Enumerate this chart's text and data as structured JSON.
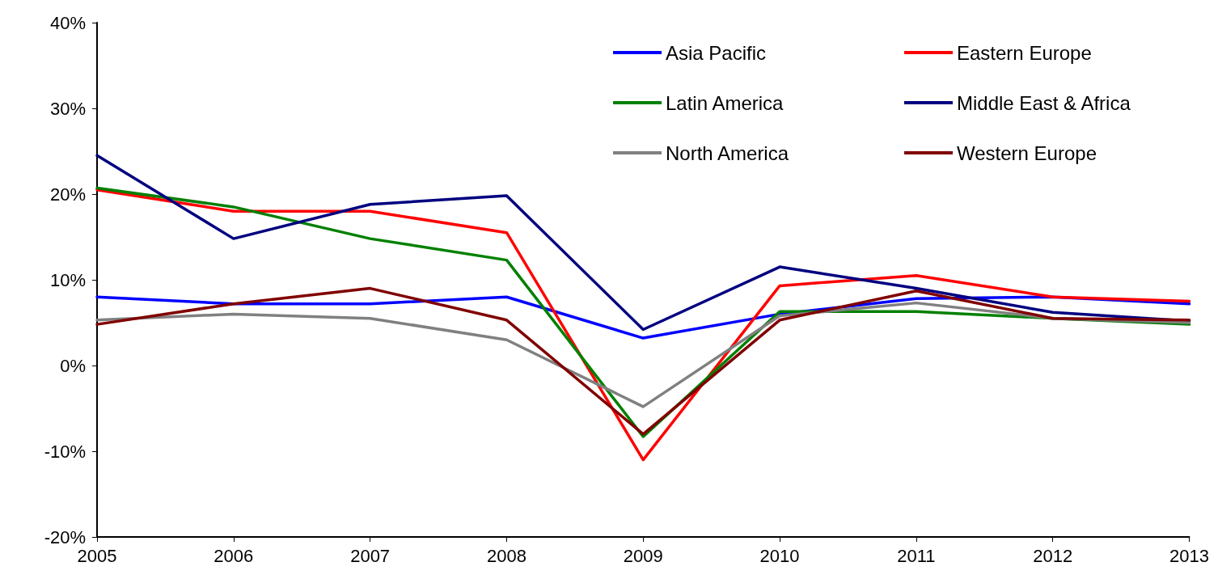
{
  "chart_data": {
    "type": "line",
    "x": [
      2005,
      2006,
      2007,
      2008,
      2009,
      2010,
      2011,
      2012,
      2013
    ],
    "xlim": [
      2005,
      2013
    ],
    "xticks": [
      2005,
      2006,
      2007,
      2008,
      2009,
      2010,
      2011,
      2012,
      2013
    ],
    "ylim": [
      -20,
      40
    ],
    "yticks": [
      {
        "value": -20,
        "label": "-20%"
      },
      {
        "value": -10,
        "label": "-10%"
      },
      {
        "value": 0,
        "label": "0%"
      },
      {
        "value": 10,
        "label": "10%"
      },
      {
        "value": 20,
        "label": "20%"
      },
      {
        "value": 30,
        "label": "30%"
      },
      {
        "value": 40,
        "label": "40%"
      }
    ],
    "grid": false,
    "legend": "top right",
    "marker": "none",
    "line_style": "solid",
    "series": [
      {
        "name": "Asia Pacific",
        "color": "#0000ff",
        "values": [
          8,
          7.2,
          7.2,
          8,
          3.2,
          6,
          7.8,
          8,
          7.2
        ]
      },
      {
        "name": "Eastern Europe",
        "color": "#ff0000",
        "values": [
          20.5,
          18,
          18,
          15.5,
          -11,
          9.3,
          10.5,
          8,
          7.5
        ]
      },
      {
        "name": "Latin America",
        "color": "#008000",
        "values": [
          20.7,
          18.5,
          14.8,
          12.3,
          -8.3,
          6.3,
          6.3,
          5.5,
          4.8
        ]
      },
      {
        "name": "Middle East & Africa",
        "color": "#000080",
        "values": [
          24.5,
          14.8,
          18.8,
          19.8,
          4.2,
          11.5,
          9,
          6.2,
          5.2
        ]
      },
      {
        "name": "North America",
        "color": "#808080",
        "values": [
          5.3,
          6,
          5.5,
          3,
          -4.8,
          5.8,
          7.3,
          5.5,
          5
        ]
      },
      {
        "name": "Western Europe",
        "color": "#800000",
        "values": [
          4.8,
          7.2,
          9,
          5.3,
          -8,
          5.3,
          8.7,
          5.5,
          5.3
        ]
      }
    ]
  }
}
